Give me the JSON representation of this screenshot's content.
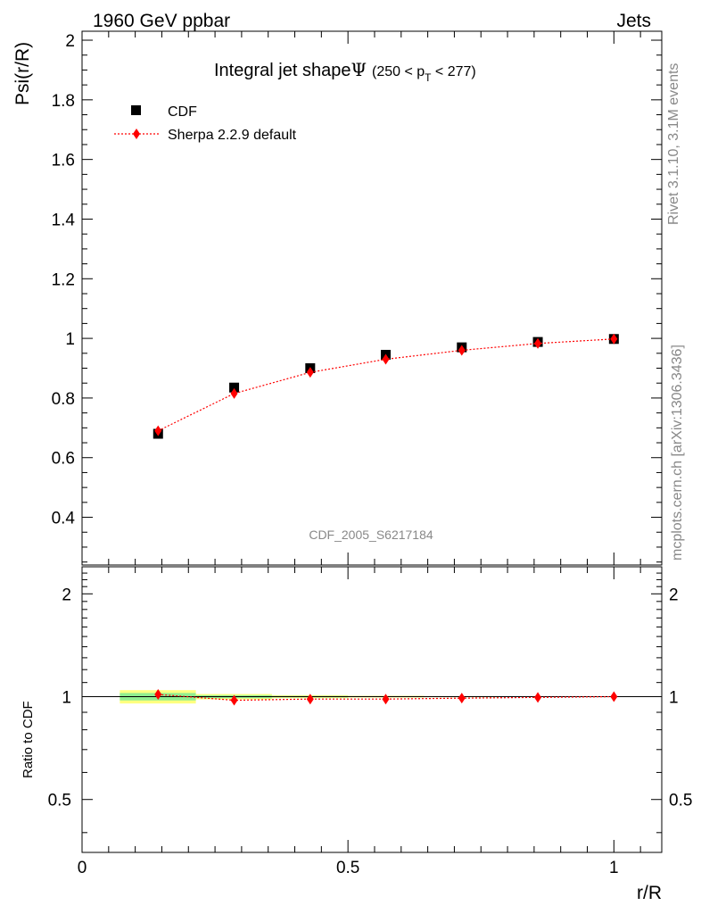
{
  "header": {
    "left": "1960 GeV ppbar",
    "right": "Jets"
  },
  "side_labels": {
    "upper": "Rivet 3.1.10,  3.1M events",
    "lower": "mcplots.cern.ch [arXiv:1306.3436]"
  },
  "watermark": "CDF_2005_S6217184",
  "plot_title": {
    "main": "Integral jet shape",
    "symbol": "Ψ",
    "range_pre": "(250 < p",
    "range_sub": "T",
    "range_post": " < 277)"
  },
  "legend": [
    {
      "label": "CDF",
      "marker": "square",
      "color": "#000000"
    },
    {
      "label": "Sherpa 2.2.9 default",
      "marker": "diamond",
      "color": "#ff0000"
    }
  ],
  "chart_data": {
    "type": "scatter",
    "upper": {
      "ylabel": "Psi(r/R)",
      "ylim": [
        0.24,
        2.03
      ],
      "yticks": [
        0.4,
        0.6,
        0.8,
        1,
        1.2,
        1.4,
        1.6,
        1.8,
        2
      ],
      "ytick_labels": [
        "0.4",
        "0.6",
        "0.8",
        "1",
        "1.2",
        "1.4",
        "1.6",
        "1.8",
        "2"
      ],
      "series": [
        {
          "name": "CDF",
          "x": [
            0.143,
            0.286,
            0.429,
            0.571,
            0.714,
            0.857,
            1.0
          ],
          "y": [
            0.68,
            0.835,
            0.9,
            0.945,
            0.97,
            0.988,
            0.998
          ],
          "color": "#000000",
          "style": "square"
        },
        {
          "name": "Sherpa 2.2.9 default",
          "x": [
            0.143,
            0.286,
            0.429,
            0.571,
            0.714,
            0.857,
            1.0
          ],
          "y": [
            0.69,
            0.815,
            0.886,
            0.93,
            0.96,
            0.983,
            0.998
          ],
          "color": "#ff0000",
          "style": "diamond-dotted"
        }
      ]
    },
    "ratio": {
      "ylabel": "Ratio to CDF",
      "ylim": [
        0.35,
        2.4
      ],
      "log": true,
      "yticks": [
        0.5,
        1,
        2
      ],
      "ytick_labels": [
        "0.5",
        "1",
        "2"
      ],
      "bands": [
        {
          "x": [
            0.071,
            0.214
          ],
          "green": [
            0.975,
            1.025
          ],
          "yellow": [
            0.955,
            1.045
          ]
        },
        {
          "x": [
            0.214,
            0.357
          ],
          "green": [
            0.99,
            1.01
          ],
          "yellow": [
            0.982,
            1.018
          ]
        },
        {
          "x": [
            0.357,
            0.5
          ],
          "green": [
            0.995,
            1.005
          ],
          "yellow": [
            0.99,
            1.01
          ]
        },
        {
          "x": [
            0.5,
            0.643
          ],
          "green": [
            0.997,
            1.003
          ],
          "yellow": [
            0.994,
            1.006
          ]
        },
        {
          "x": [
            0.643,
            0.786
          ],
          "green": [
            0.998,
            1.002
          ],
          "yellow": [
            0.996,
            1.004
          ]
        },
        {
          "x": [
            0.786,
            0.929
          ],
          "green": [
            0.999,
            1.001
          ],
          "yellow": [
            0.998,
            1.002
          ]
        },
        {
          "x": [
            0.929,
            1.07
          ],
          "green": [
            0.9995,
            1.0005
          ],
          "yellow": [
            0.999,
            1.001
          ]
        }
      ],
      "series": [
        {
          "name": "Sherpa 2.2.9 default",
          "x": [
            0.143,
            0.286,
            0.429,
            0.571,
            0.714,
            0.857,
            1.0
          ],
          "y": [
            1.015,
            0.976,
            0.984,
            0.984,
            0.99,
            0.995,
            1.0
          ],
          "color": "#ff0000"
        }
      ]
    },
    "x": {
      "xlabel": "r/R",
      "xlim": [
        0,
        1.09
      ],
      "xticks": [
        0,
        0.5,
        1
      ],
      "xtick_labels": [
        "0",
        "0.5",
        "1"
      ]
    },
    "legend_position": "top-left"
  }
}
